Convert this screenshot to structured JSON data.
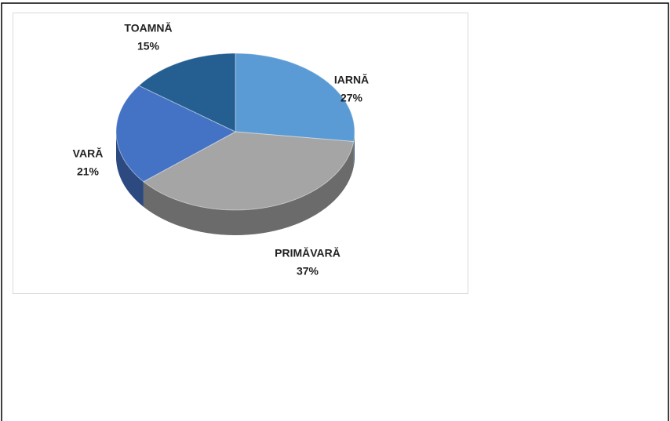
{
  "chart_data": {
    "type": "pie",
    "categories": [
      "IARNĂ",
      "PRIMĂVARĂ",
      "VARĂ",
      "TOAMNĂ"
    ],
    "values": [
      27,
      37,
      21,
      15
    ],
    "value_labels": [
      "27%",
      "37%",
      "21%",
      "15%"
    ],
    "colors": [
      "#5b9bd5",
      "#a5a5a5",
      "#4472c4",
      "#255e91"
    ]
  }
}
